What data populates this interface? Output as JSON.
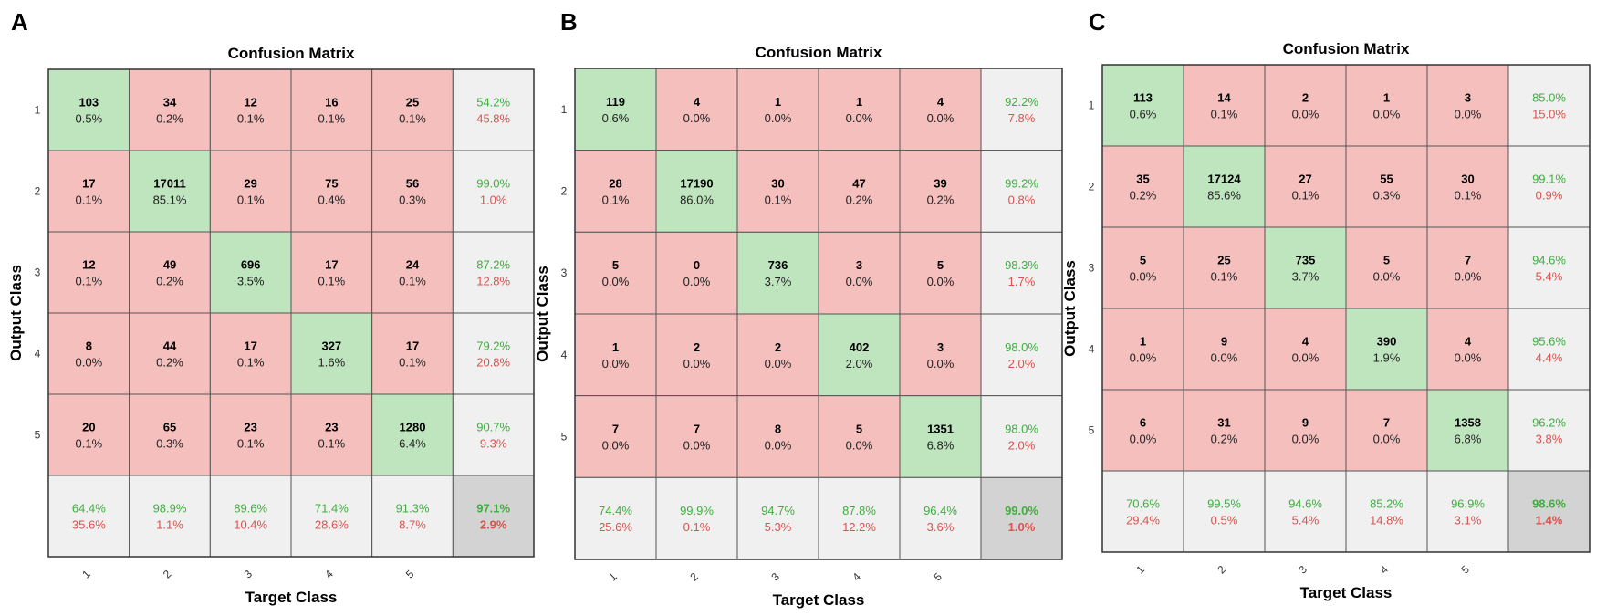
{
  "chart_data": [
    {
      "type": "heatmap",
      "panel_label": "A",
      "title": "Confusion Matrix",
      "xlabel": "Target Class",
      "ylabel": "Output Class",
      "classes": [
        "1",
        "2",
        "3",
        "4",
        "5"
      ],
      "cells": [
        [
          {
            "count": "103",
            "pct": "0.5%"
          },
          {
            "count": "34",
            "pct": "0.2%"
          },
          {
            "count": "12",
            "pct": "0.1%"
          },
          {
            "count": "16",
            "pct": "0.1%"
          },
          {
            "count": "25",
            "pct": "0.1%"
          }
        ],
        [
          {
            "count": "17",
            "pct": "0.1%"
          },
          {
            "count": "17011",
            "pct": "85.1%"
          },
          {
            "count": "29",
            "pct": "0.1%"
          },
          {
            "count": "75",
            "pct": "0.4%"
          },
          {
            "count": "56",
            "pct": "0.3%"
          }
        ],
        [
          {
            "count": "12",
            "pct": "0.1%"
          },
          {
            "count": "49",
            "pct": "0.2%"
          },
          {
            "count": "696",
            "pct": "3.5%"
          },
          {
            "count": "17",
            "pct": "0.1%"
          },
          {
            "count": "24",
            "pct": "0.1%"
          }
        ],
        [
          {
            "count": "8",
            "pct": "0.0%"
          },
          {
            "count": "44",
            "pct": "0.2%"
          },
          {
            "count": "17",
            "pct": "0.1%"
          },
          {
            "count": "327",
            "pct": "1.6%"
          },
          {
            "count": "17",
            "pct": "0.1%"
          }
        ],
        [
          {
            "count": "20",
            "pct": "0.1%"
          },
          {
            "count": "65",
            "pct": "0.3%"
          },
          {
            "count": "23",
            "pct": "0.1%"
          },
          {
            "count": "23",
            "pct": "0.1%"
          },
          {
            "count": "1280",
            "pct": "6.4%"
          }
        ]
      ],
      "row_summary": [
        {
          "good": "54.2%",
          "bad": "45.8%"
        },
        {
          "good": "99.0%",
          "bad": "1.0%"
        },
        {
          "good": "87.2%",
          "bad": "12.8%"
        },
        {
          "good": "79.2%",
          "bad": "20.8%"
        },
        {
          "good": "90.7%",
          "bad": "9.3%"
        }
      ],
      "col_summary": [
        {
          "good": "64.4%",
          "bad": "35.6%"
        },
        {
          "good": "98.9%",
          "bad": "1.1%"
        },
        {
          "good": "89.6%",
          "bad": "10.4%"
        },
        {
          "good": "71.4%",
          "bad": "28.6%"
        },
        {
          "good": "91.3%",
          "bad": "8.7%"
        }
      ],
      "overall": {
        "good": "97.1%",
        "bad": "2.9%"
      }
    },
    {
      "type": "heatmap",
      "panel_label": "B",
      "title": "Confusion Matrix",
      "xlabel": "Target Class",
      "ylabel": "Output Class",
      "classes": [
        "1",
        "2",
        "3",
        "4",
        "5"
      ],
      "cells": [
        [
          {
            "count": "119",
            "pct": "0.6%"
          },
          {
            "count": "4",
            "pct": "0.0%"
          },
          {
            "count": "1",
            "pct": "0.0%"
          },
          {
            "count": "1",
            "pct": "0.0%"
          },
          {
            "count": "4",
            "pct": "0.0%"
          }
        ],
        [
          {
            "count": "28",
            "pct": "0.1%"
          },
          {
            "count": "17190",
            "pct": "86.0%"
          },
          {
            "count": "30",
            "pct": "0.1%"
          },
          {
            "count": "47",
            "pct": "0.2%"
          },
          {
            "count": "39",
            "pct": "0.2%"
          }
        ],
        [
          {
            "count": "5",
            "pct": "0.0%"
          },
          {
            "count": "0",
            "pct": "0.0%"
          },
          {
            "count": "736",
            "pct": "3.7%"
          },
          {
            "count": "3",
            "pct": "0.0%"
          },
          {
            "count": "5",
            "pct": "0.0%"
          }
        ],
        [
          {
            "count": "1",
            "pct": "0.0%"
          },
          {
            "count": "2",
            "pct": "0.0%"
          },
          {
            "count": "2",
            "pct": "0.0%"
          },
          {
            "count": "402",
            "pct": "2.0%"
          },
          {
            "count": "3",
            "pct": "0.0%"
          }
        ],
        [
          {
            "count": "7",
            "pct": "0.0%"
          },
          {
            "count": "7",
            "pct": "0.0%"
          },
          {
            "count": "8",
            "pct": "0.0%"
          },
          {
            "count": "5",
            "pct": "0.0%"
          },
          {
            "count": "1351",
            "pct": "6.8%"
          }
        ]
      ],
      "row_summary": [
        {
          "good": "92.2%",
          "bad": "7.8%"
        },
        {
          "good": "99.2%",
          "bad": "0.8%"
        },
        {
          "good": "98.3%",
          "bad": "1.7%"
        },
        {
          "good": "98.0%",
          "bad": "2.0%"
        },
        {
          "good": "98.0%",
          "bad": "2.0%"
        }
      ],
      "col_summary": [
        {
          "good": "74.4%",
          "bad": "25.6%"
        },
        {
          "good": "99.9%",
          "bad": "0.1%"
        },
        {
          "good": "94.7%",
          "bad": "5.3%"
        },
        {
          "good": "87.8%",
          "bad": "12.2%"
        },
        {
          "good": "96.4%",
          "bad": "3.6%"
        }
      ],
      "overall": {
        "good": "99.0%",
        "bad": "1.0%"
      }
    },
    {
      "type": "heatmap",
      "panel_label": "C",
      "title": "Confusion Matrix",
      "xlabel": "Target Class",
      "ylabel": "Output Class",
      "classes": [
        "1",
        "2",
        "3",
        "4",
        "5"
      ],
      "cells": [
        [
          {
            "count": "113",
            "pct": "0.6%"
          },
          {
            "count": "14",
            "pct": "0.1%"
          },
          {
            "count": "2",
            "pct": "0.0%"
          },
          {
            "count": "1",
            "pct": "0.0%"
          },
          {
            "count": "3",
            "pct": "0.0%"
          }
        ],
        [
          {
            "count": "35",
            "pct": "0.2%"
          },
          {
            "count": "17124",
            "pct": "85.6%"
          },
          {
            "count": "27",
            "pct": "0.1%"
          },
          {
            "count": "55",
            "pct": "0.3%"
          },
          {
            "count": "30",
            "pct": "0.1%"
          }
        ],
        [
          {
            "count": "5",
            "pct": "0.0%"
          },
          {
            "count": "25",
            "pct": "0.1%"
          },
          {
            "count": "735",
            "pct": "3.7%"
          },
          {
            "count": "5",
            "pct": "0.0%"
          },
          {
            "count": "7",
            "pct": "0.0%"
          }
        ],
        [
          {
            "count": "1",
            "pct": "0.0%"
          },
          {
            "count": "9",
            "pct": "0.0%"
          },
          {
            "count": "4",
            "pct": "0.0%"
          },
          {
            "count": "390",
            "pct": "1.9%"
          },
          {
            "count": "4",
            "pct": "0.0%"
          }
        ],
        [
          {
            "count": "6",
            "pct": "0.0%"
          },
          {
            "count": "31",
            "pct": "0.2%"
          },
          {
            "count": "9",
            "pct": "0.0%"
          },
          {
            "count": "7",
            "pct": "0.0%"
          },
          {
            "count": "1358",
            "pct": "6.8%"
          }
        ]
      ],
      "row_summary": [
        {
          "good": "85.0%",
          "bad": "15.0%"
        },
        {
          "good": "99.1%",
          "bad": "0.9%"
        },
        {
          "good": "94.6%",
          "bad": "5.4%"
        },
        {
          "good": "95.6%",
          "bad": "4.4%"
        },
        {
          "good": "96.2%",
          "bad": "3.8%"
        }
      ],
      "col_summary": [
        {
          "good": "70.6%",
          "bad": "29.4%"
        },
        {
          "good": "99.5%",
          "bad": "0.5%"
        },
        {
          "good": "94.6%",
          "bad": "5.4%"
        },
        {
          "good": "85.2%",
          "bad": "14.8%"
        },
        {
          "good": "96.9%",
          "bad": "3.1%"
        }
      ],
      "overall": {
        "good": "98.6%",
        "bad": "1.4%"
      }
    }
  ],
  "colors": {
    "correct": "#bfe5bf",
    "incorrect": "#f4bfbd",
    "summary": "#f0f0f0",
    "overall": "#d3d3d3",
    "grid": "#555555",
    "good_text": "#3fae3f",
    "bad_text": "#d9534f"
  }
}
